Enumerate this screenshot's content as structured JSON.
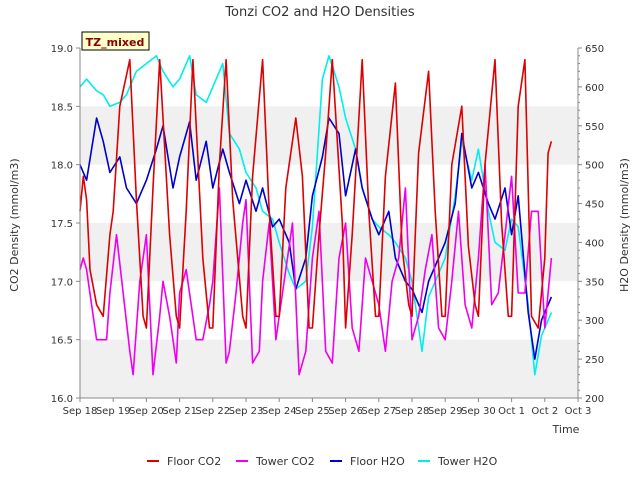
{
  "chart_data": {
    "type": "line",
    "title": "Tonzi CO2 and H2O Densities",
    "badge": "TZ_mixed",
    "xlabel": "Time",
    "ylabel_left": "CO2 Density (mmol/m3)",
    "ylabel_right": "H2O Density (mmol/m3)",
    "xlim": [
      0,
      15
    ],
    "ylim_left": [
      16.0,
      19.0
    ],
    "ylim_right": [
      200,
      650
    ],
    "x_ticks": [
      {
        "x": 0,
        "label": "Sep 18"
      },
      {
        "x": 1,
        "label": "Sep 19"
      },
      {
        "x": 2,
        "label": "Sep 20"
      },
      {
        "x": 3,
        "label": "Sep 21"
      },
      {
        "x": 4,
        "label": "Sep 22"
      },
      {
        "x": 5,
        "label": "Sep 23"
      },
      {
        "x": 6,
        "label": "Sep 24"
      },
      {
        "x": 7,
        "label": "Sep 25"
      },
      {
        "x": 8,
        "label": "Sep 26"
      },
      {
        "x": 9,
        "label": "Sep 27"
      },
      {
        "x": 10,
        "label": "Sep 28"
      },
      {
        "x": 11,
        "label": "Sep 29"
      },
      {
        "x": 12,
        "label": "Sep 30"
      },
      {
        "x": 13,
        "label": "Oct 1"
      },
      {
        "x": 14,
        "label": "Oct 2"
      },
      {
        "x": 15,
        "label": "Oct 3"
      }
    ],
    "y_ticks_left": [
      "16.0",
      "16.5",
      "17.0",
      "17.5",
      "18.0",
      "18.5",
      "19.0"
    ],
    "y_ticks_right": [
      "200",
      "250",
      "300",
      "350",
      "400",
      "450",
      "500",
      "550",
      "600",
      "650"
    ],
    "legend_position": "bottom-center",
    "grid": "horizontal bands",
    "colors": {
      "band": "#f0f0f0",
      "axis": "#888888",
      "text": "#333333",
      "badge_fill": "#ffffcc",
      "badge_text": "#8b0000"
    },
    "series": [
      {
        "name": "Floor CO2",
        "axis": "left",
        "color": "#dd0000",
        "x": [
          0.0,
          0.1,
          0.2,
          0.3,
          0.5,
          0.7,
          0.9,
          1.0,
          1.2,
          1.5,
          1.7,
          1.9,
          2.0,
          2.2,
          2.4,
          2.7,
          2.9,
          3.0,
          3.2,
          3.4,
          3.7,
          3.9,
          4.0,
          4.2,
          4.4,
          4.6,
          4.9,
          5.0,
          5.2,
          5.5,
          5.7,
          5.9,
          6.0,
          6.2,
          6.5,
          6.7,
          6.9,
          7.0,
          7.2,
          7.4,
          7.6,
          7.9,
          8.0,
          8.2,
          8.5,
          8.7,
          8.9,
          9.0,
          9.2,
          9.5,
          9.7,
          9.9,
          10.0,
          10.2,
          10.5,
          10.7,
          10.9,
          11.0,
          11.2,
          11.5,
          11.7,
          11.9,
          12.0,
          12.2,
          12.5,
          12.7,
          12.9,
          13.0,
          13.2,
          13.4,
          13.6,
          13.8,
          14.0,
          14.1,
          14.2
        ],
        "y": [
          17.6,
          17.9,
          17.7,
          17.1,
          16.8,
          16.7,
          17.4,
          17.6,
          18.5,
          18.9,
          17.7,
          16.7,
          16.6,
          17.8,
          18.9,
          17.4,
          16.7,
          16.6,
          17.6,
          18.9,
          17.2,
          16.6,
          16.6,
          18.0,
          18.9,
          17.7,
          16.7,
          16.6,
          17.9,
          18.9,
          17.6,
          16.7,
          16.7,
          17.8,
          18.4,
          17.9,
          16.6,
          16.6,
          17.4,
          18.1,
          18.9,
          17.5,
          16.6,
          17.4,
          18.9,
          17.6,
          16.7,
          16.7,
          17.9,
          18.7,
          17.3,
          16.8,
          16.7,
          18.1,
          18.8,
          17.6,
          16.7,
          16.7,
          18.0,
          18.5,
          17.3,
          16.8,
          16.7,
          18.0,
          18.9,
          17.5,
          16.7,
          16.7,
          18.5,
          18.9,
          16.7,
          16.6,
          17.2,
          18.1,
          18.2
        ]
      },
      {
        "name": "Tower CO2",
        "axis": "left",
        "color": "#ee00ee",
        "x": [
          0.0,
          0.1,
          0.2,
          0.5,
          0.8,
          0.9,
          1.1,
          1.5,
          1.6,
          1.8,
          2.0,
          2.2,
          2.4,
          2.5,
          2.7,
          2.9,
          3.0,
          3.2,
          3.5,
          3.7,
          3.9,
          4.0,
          4.2,
          4.4,
          4.5,
          4.7,
          4.9,
          5.0,
          5.2,
          5.4,
          5.5,
          5.7,
          5.9,
          6.0,
          6.2,
          6.4,
          6.6,
          6.8,
          7.0,
          7.2,
          7.4,
          7.6,
          7.8,
          8.0,
          8.2,
          8.4,
          8.6,
          8.8,
          9.0,
          9.2,
          9.4,
          9.6,
          9.8,
          10.0,
          10.2,
          10.4,
          10.6,
          10.8,
          11.0,
          11.2,
          11.4,
          11.6,
          11.8,
          12.0,
          12.2,
          12.4,
          12.6,
          12.8,
          13.0,
          13.2,
          13.4,
          13.6,
          13.8,
          14.0,
          14.2
        ],
        "y": [
          17.1,
          17.2,
          17.1,
          16.5,
          16.5,
          16.9,
          17.4,
          16.4,
          16.2,
          17.0,
          17.4,
          16.2,
          16.7,
          17.0,
          16.7,
          16.3,
          16.9,
          17.1,
          16.5,
          16.5,
          16.8,
          17.0,
          17.8,
          16.3,
          16.4,
          16.9,
          17.5,
          17.7,
          16.3,
          16.4,
          17.0,
          17.5,
          16.5,
          16.7,
          17.1,
          17.5,
          16.2,
          16.4,
          17.2,
          17.6,
          16.4,
          16.3,
          17.2,
          17.5,
          16.6,
          16.4,
          17.2,
          17.0,
          16.8,
          16.4,
          17.0,
          17.2,
          17.8,
          16.5,
          16.7,
          17.1,
          17.4,
          16.6,
          16.5,
          17.0,
          17.6,
          16.8,
          16.6,
          17.2,
          18.0,
          16.8,
          16.9,
          17.4,
          17.9,
          16.9,
          16.9,
          17.6,
          17.6,
          16.6,
          17.2
        ]
      },
      {
        "name": "Floor H2O",
        "axis": "right",
        "color": "#0000cc",
        "x": [
          0.0,
          0.2,
          0.5,
          0.7,
          0.9,
          1.2,
          1.4,
          1.7,
          2.0,
          2.3,
          2.5,
          2.8,
          3.0,
          3.3,
          3.5,
          3.8,
          4.0,
          4.3,
          4.5,
          4.8,
          5.0,
          5.3,
          5.5,
          5.8,
          6.0,
          6.3,
          6.5,
          6.8,
          7.0,
          7.3,
          7.5,
          7.8,
          8.0,
          8.3,
          8.5,
          8.8,
          9.0,
          9.3,
          9.5,
          9.8,
          10.0,
          10.3,
          10.5,
          10.8,
          11.0,
          11.3,
          11.5,
          11.8,
          12.0,
          12.3,
          12.5,
          12.8,
          13.0,
          13.2,
          13.5,
          13.7,
          13.9,
          14.0,
          14.1,
          14.2
        ],
        "y": [
          500,
          480,
          560,
          530,
          490,
          510,
          470,
          450,
          480,
          520,
          550,
          470,
          510,
          555,
          480,
          530,
          470,
          520,
          490,
          450,
          480,
          440,
          470,
          420,
          430,
          400,
          340,
          380,
          460,
          510,
          560,
          540,
          460,
          520,
          470,
          430,
          410,
          440,
          380,
          350,
          340,
          310,
          350,
          380,
          400,
          450,
          540,
          470,
          490,
          450,
          430,
          470,
          410,
          460,
          310,
          250,
          300,
          310,
          320,
          330
        ],
        "y_note": "values in H2O axis units"
      },
      {
        "name": "Tower H2O",
        "axis": "right",
        "color": "#00eeee",
        "x": [
          0.0,
          0.2,
          0.5,
          0.7,
          0.9,
          1.2,
          1.4,
          1.7,
          2.0,
          2.3,
          2.5,
          2.8,
          3.0,
          3.3,
          3.5,
          3.8,
          4.0,
          4.3,
          4.5,
          4.8,
          5.0,
          5.3,
          5.5,
          5.8,
          6.0,
          6.3,
          6.5,
          6.8,
          7.0,
          7.3,
          7.5,
          7.8,
          8.0,
          8.3,
          8.5,
          8.8,
          9.0,
          9.3,
          9.5,
          9.8,
          10.0,
          10.3,
          10.5,
          10.8,
          11.0,
          11.3,
          11.5,
          11.8,
          12.0,
          12.3,
          12.5,
          12.8,
          13.0,
          13.2,
          13.5,
          13.7,
          13.9,
          14.0,
          14.1,
          14.2
        ],
        "y": [
          600,
          610,
          595,
          590,
          575,
          580,
          590,
          620,
          630,
          640,
          620,
          600,
          610,
          640,
          590,
          580,
          600,
          630,
          540,
          520,
          490,
          470,
          440,
          430,
          400,
          360,
          340,
          350,
          420,
          610,
          640,
          600,
          560,
          520,
          470,
          430,
          420,
          410,
          400,
          380,
          350,
          260,
          330,
          360,
          380,
          460,
          530,
          480,
          520,
          440,
          400,
          390,
          430,
          420,
          320,
          230,
          280,
          290,
          300,
          310
        ]
      }
    ]
  }
}
